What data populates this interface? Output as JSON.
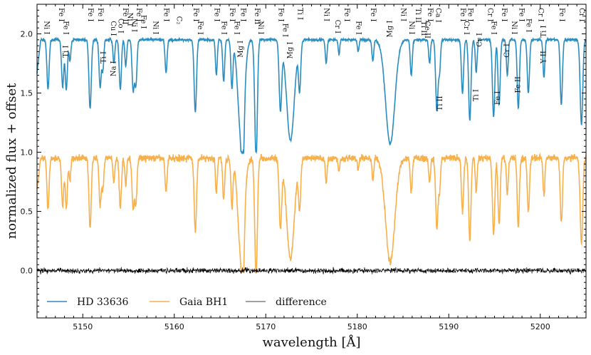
{
  "chart_data": {
    "type": "line",
    "xlabel": "wavelength [Å]",
    "ylabel": "normalized flux + offset",
    "xlim": [
      5145,
      5205
    ],
    "ylim": [
      -0.4,
      2.25
    ],
    "xticks": [
      5150,
      5160,
      5170,
      5180,
      5190,
      5200
    ],
    "yticks": [
      0.0,
      0.5,
      1.0,
      1.5,
      2.0
    ],
    "ytick_labels": [
      "0.0",
      "0.5",
      "1.0",
      "1.5",
      "2.0"
    ],
    "colors": {
      "hd": "#2b8cbe",
      "bh1": "#f8b04b",
      "diff": "#000000",
      "axis": "#000000"
    },
    "series": [
      {
        "name": "HD 33636",
        "key": "hd",
        "offset": 0.95,
        "noise": 0.01
      },
      {
        "name": "Gaia BH1",
        "key": "bh1",
        "offset": 0.0,
        "noise": 0.028
      },
      {
        "name": "difference",
        "key": "diff",
        "offset": 0.0,
        "noise": 0.022
      }
    ],
    "absorption_lines": [
      {
        "x": 5146.2,
        "depth": 0.42,
        "width": 0.12
      },
      {
        "x": 5147.8,
        "depth": 0.4,
        "width": 0.12
      },
      {
        "x": 5148.2,
        "depth": 0.42,
        "width": 0.12
      },
      {
        "x": 5148.6,
        "depth": 0.18,
        "width": 0.1
      },
      {
        "x": 5150.8,
        "depth": 0.58,
        "width": 0.13
      },
      {
        "x": 5151.9,
        "depth": 0.4,
        "width": 0.12
      },
      {
        "x": 5152.2,
        "depth": 0.25,
        "width": 0.1
      },
      {
        "x": 5153.4,
        "depth": 0.2,
        "width": 0.1
      },
      {
        "x": 5154.1,
        "depth": 0.42,
        "width": 0.12
      },
      {
        "x": 5154.7,
        "depth": 0.22,
        "width": 0.1
      },
      {
        "x": 5155.5,
        "depth": 0.42,
        "width": 0.12
      },
      {
        "x": 5155.8,
        "depth": 0.38,
        "width": 0.12
      },
      {
        "x": 5159.1,
        "depth": 0.28,
        "width": 0.11
      },
      {
        "x": 5162.3,
        "depth": 0.62,
        "width": 0.13
      },
      {
        "x": 5164.6,
        "depth": 0.3,
        "width": 0.1
      },
      {
        "x": 5165.4,
        "depth": 0.35,
        "width": 0.11
      },
      {
        "x": 5166.3,
        "depth": 0.4,
        "width": 0.11
      },
      {
        "x": 5167.3,
        "depth": 0.8,
        "width": 0.35
      },
      {
        "x": 5167.5,
        "depth": 0.5,
        "width": 0.14
      },
      {
        "x": 5168.9,
        "depth": 0.68,
        "width": 0.14
      },
      {
        "x": 5169.0,
        "depth": 0.4,
        "width": 0.12
      },
      {
        "x": 5171.6,
        "depth": 0.58,
        "width": 0.14
      },
      {
        "x": 5172.7,
        "depth": 0.85,
        "width": 0.42
      },
      {
        "x": 5173.7,
        "depth": 0.4,
        "width": 0.12
      },
      {
        "x": 5176.6,
        "depth": 0.2,
        "width": 0.1
      },
      {
        "x": 5178.0,
        "depth": 0.12,
        "width": 0.09
      },
      {
        "x": 5180.1,
        "depth": 0.1,
        "width": 0.09
      },
      {
        "x": 5181.7,
        "depth": 0.18,
        "width": 0.1
      },
      {
        "x": 5183.6,
        "depth": 0.88,
        "width": 0.5
      },
      {
        "x": 5185.9,
        "depth": 0.3,
        "width": 0.11
      },
      {
        "x": 5187.9,
        "depth": 0.2,
        "width": 0.1
      },
      {
        "x": 5188.7,
        "depth": 0.6,
        "width": 0.13
      },
      {
        "x": 5189.0,
        "depth": 0.25,
        "width": 0.1
      },
      {
        "x": 5191.5,
        "depth": 0.45,
        "width": 0.12
      },
      {
        "x": 5192.3,
        "depth": 0.68,
        "width": 0.13
      },
      {
        "x": 5193.0,
        "depth": 0.28,
        "width": 0.1
      },
      {
        "x": 5194.9,
        "depth": 0.65,
        "width": 0.13
      },
      {
        "x": 5195.5,
        "depth": 0.55,
        "width": 0.12
      },
      {
        "x": 5196.4,
        "depth": 0.3,
        "width": 0.1
      },
      {
        "x": 5197.6,
        "depth": 0.58,
        "width": 0.12
      },
      {
        "x": 5198.7,
        "depth": 0.45,
        "width": 0.12
      },
      {
        "x": 5200.4,
        "depth": 0.32,
        "width": 0.1
      },
      {
        "x": 5202.3,
        "depth": 0.55,
        "width": 0.12
      },
      {
        "x": 5204.5,
        "depth": 0.72,
        "width": 0.14
      }
    ],
    "annotations": [
      {
        "text": "Ni I",
        "x": 5146.0,
        "y": 2.11,
        "rot": 90
      },
      {
        "text": "Fe I",
        "x": 5147.6,
        "y": 2.22,
        "rot": 90
      },
      {
        "text": "Fe I",
        "x": 5148.1,
        "y": 2.11,
        "rot": 90
      },
      {
        "text": "Ti I",
        "x": 5148.2,
        "y": 1.8,
        "rot": -90
      },
      {
        "text": "Fe I",
        "x": 5150.8,
        "y": 2.22,
        "rot": 90
      },
      {
        "text": "Fe I",
        "x": 5151.9,
        "y": 2.22,
        "rot": 90
      },
      {
        "text": "Ti I",
        "x": 5152.3,
        "y": 1.75,
        "rot": -90
      },
      {
        "text": "Cu I",
        "x": 5153.3,
        "y": 2.11,
        "rot": 90
      },
      {
        "text": "Na I",
        "x": 5153.4,
        "y": 1.64,
        "rot": -90
      },
      {
        "text": "Co I",
        "x": 5154.1,
        "y": 2.13,
        "rot": 90
      },
      {
        "text": "Fe II",
        "x": 5154.6,
        "y": 2.22,
        "rot": 90
      },
      {
        "text": "Ni I",
        "x": 5155.1,
        "y": 2.18,
        "rot": 90
      },
      {
        "text": "Ni I",
        "x": 5155.6,
        "y": 2.13,
        "rot": 90
      },
      {
        "text": "Fe I",
        "x": 5156.1,
        "y": 2.22,
        "rot": 90
      },
      {
        "text": "Fe I",
        "x": 5156.6,
        "y": 2.16,
        "rot": 90
      },
      {
        "text": "Ni I",
        "x": 5157.9,
        "y": 2.11,
        "rot": 90
      },
      {
        "text": "Fe I",
        "x": 5159.1,
        "y": 2.22,
        "rot": 90
      },
      {
        "text": "C₂",
        "x": 5160.5,
        "y": 2.15,
        "rot": 90
      },
      {
        "text": "Fe I",
        "x": 5162.3,
        "y": 2.22,
        "rot": 90
      },
      {
        "text": "Fe I",
        "x": 5162.8,
        "y": 2.11,
        "rot": 90
      },
      {
        "text": "Fe I",
        "x": 5164.6,
        "y": 2.22,
        "rot": 90
      },
      {
        "text": "Fe I",
        "x": 5165.4,
        "y": 2.11,
        "rot": 90
      },
      {
        "text": "Fe I",
        "x": 5166.3,
        "y": 2.22,
        "rot": 90
      },
      {
        "text": "Fe I",
        "x": 5166.8,
        "y": 2.11,
        "rot": 90
      },
      {
        "text": "Mg I",
        "x": 5167.3,
        "y": 1.8,
        "rot": -90
      },
      {
        "text": "Fe I",
        "x": 5167.5,
        "y": 2.22,
        "rot": 90
      },
      {
        "text": "Fe II",
        "x": 5169.0,
        "y": 2.22,
        "rot": 90
      },
      {
        "text": "Ni I",
        "x": 5169.4,
        "y": 2.11,
        "rot": 90
      },
      {
        "text": "Fe I",
        "x": 5171.6,
        "y": 2.22,
        "rot": 90
      },
      {
        "text": "Fe I",
        "x": 5172.1,
        "y": 2.09,
        "rot": 90
      },
      {
        "text": "Mg I",
        "x": 5172.7,
        "y": 1.79,
        "rot": -90
      },
      {
        "text": "Ti I",
        "x": 5173.7,
        "y": 2.22,
        "rot": 90
      },
      {
        "text": "Ni I",
        "x": 5176.6,
        "y": 2.22,
        "rot": 90
      },
      {
        "text": "Cr I",
        "x": 5177.8,
        "y": 2.12,
        "rot": 90
      },
      {
        "text": "Fe I",
        "x": 5178.8,
        "y": 2.22,
        "rot": 90
      },
      {
        "text": "Fe I",
        "x": 5180.1,
        "y": 2.11,
        "rot": 90
      },
      {
        "text": "Fe I",
        "x": 5181.7,
        "y": 2.22,
        "rot": 90
      },
      {
        "text": "Mg I",
        "x": 5183.6,
        "y": 1.97,
        "rot": -90
      },
      {
        "text": "Ni I",
        "x": 5185.0,
        "y": 2.22,
        "rot": 90
      },
      {
        "text": "Ni I",
        "x": 5185.9,
        "y": 2.11,
        "rot": 90
      },
      {
        "text": "Ti II",
        "x": 5186.6,
        "y": 2.22,
        "rot": 90
      },
      {
        "text": "Ti II",
        "x": 5187.2,
        "y": 2.11,
        "rot": 90
      },
      {
        "text": "Ce II",
        "x": 5187.6,
        "y": 2.11,
        "rot": 90
      },
      {
        "text": "Fe I",
        "x": 5187.9,
        "y": 2.22,
        "rot": 90
      },
      {
        "text": "Ca I",
        "x": 5188.8,
        "y": 2.22,
        "rot": 90
      },
      {
        "text": "Ti II",
        "x": 5189.1,
        "y": 1.35,
        "rot": -90
      },
      {
        "text": "Fe I",
        "x": 5191.5,
        "y": 2.22,
        "rot": 90
      },
      {
        "text": "Cr I",
        "x": 5191.9,
        "y": 2.11,
        "rot": 90
      },
      {
        "text": "Fe I",
        "x": 5192.3,
        "y": 2.22,
        "rot": 90
      },
      {
        "text": "Cr I",
        "x": 5193.4,
        "y": 1.89,
        "rot": -90
      },
      {
        "text": "Ti I",
        "x": 5193.0,
        "y": 1.43,
        "rot": -90
      },
      {
        "text": "Cr I",
        "x": 5194.5,
        "y": 2.22,
        "rot": 90
      },
      {
        "text": "Fe I",
        "x": 5194.9,
        "y": 2.11,
        "rot": 90
      },
      {
        "text": "Fe I",
        "x": 5195.4,
        "y": 1.4,
        "rot": -90
      },
      {
        "text": "Fe I",
        "x": 5196.0,
        "y": 2.22,
        "rot": 90
      },
      {
        "text": "Cr I",
        "x": 5196.4,
        "y": 1.8,
        "rot": -90
      },
      {
        "text": "Ni I",
        "x": 5197.1,
        "y": 2.11,
        "rot": 90
      },
      {
        "text": "Fe II",
        "x": 5197.6,
        "y": 1.5,
        "rot": -90
      },
      {
        "text": "Fe I",
        "x": 5197.9,
        "y": 2.22,
        "rot": 90
      },
      {
        "text": "Fe I",
        "x": 5198.7,
        "y": 2.13,
        "rot": 90
      },
      {
        "text": "Ti I",
        "x": 5200.4,
        "y": 1.97,
        "rot": -90
      },
      {
        "text": "Y II",
        "x": 5200.4,
        "y": 1.75,
        "rot": -90
      },
      {
        "text": "Cr I",
        "x": 5200.0,
        "y": 2.22,
        "rot": 90
      },
      {
        "text": "Fe I",
        "x": 5202.3,
        "y": 2.22,
        "rot": 90
      },
      {
        "text": "Cr I",
        "x": 5204.5,
        "y": 2.22,
        "rot": 90
      }
    ],
    "legend": {
      "location": "lower-left",
      "entries": [
        "HD 33636",
        "Gaia BH1",
        "difference"
      ]
    }
  }
}
